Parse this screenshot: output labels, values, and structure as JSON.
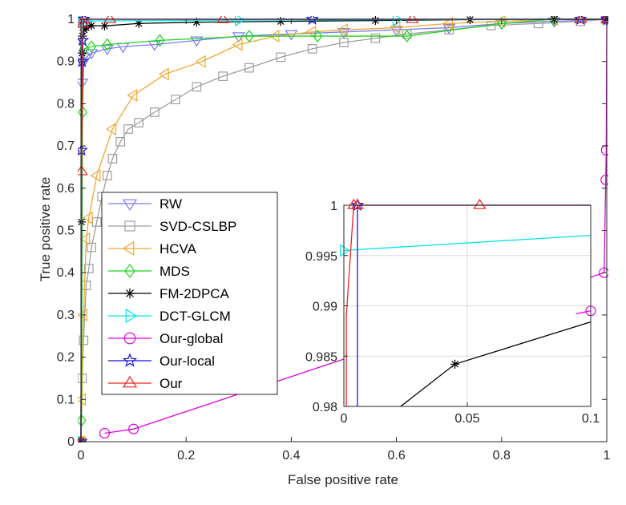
{
  "chart_data": [
    {
      "type": "line",
      "xlabel": "False positive rate",
      "ylabel": "True positive rate",
      "xlim": [
        0,
        1
      ],
      "ylim": [
        0,
        1
      ],
      "xticks": [
        0,
        0.2,
        0.4,
        0.6,
        0.8,
        1
      ],
      "xtick_labels": [
        "0",
        "0.2",
        "0.4",
        "0.6",
        "0.8",
        "1"
      ],
      "yticks": [
        0,
        0.1,
        0.2,
        0.3,
        0.4,
        0.5,
        0.6,
        0.7,
        0.8,
        0.9,
        1
      ],
      "ytick_labels": [
        "0",
        "0.1",
        "0.2",
        "0.3",
        "0.4",
        "0.5",
        "0.6",
        "0.7",
        "0.8",
        "0.9",
        "1"
      ],
      "grid": false,
      "legend_position": "left",
      "series": [
        {
          "name": "RW",
          "color": "#7b7bf5",
          "marker": "triangle-down",
          "x": [
            0,
            0.002,
            0.005,
            0.01,
            0.02,
            0.05,
            0.08,
            0.14,
            0.22,
            0.3,
            0.4,
            0.5,
            0.6,
            0.7,
            0.8,
            0.9,
            1
          ],
          "y": [
            0,
            0.85,
            0.9,
            0.91,
            0.92,
            0.93,
            0.935,
            0.94,
            0.95,
            0.96,
            0.965,
            0.97,
            0.975,
            0.98,
            0.99,
            0.995,
            1
          ]
        },
        {
          "name": "SVD-CSLBP",
          "color": "#9e9e9e",
          "marker": "square",
          "x": [
            0,
            0.002,
            0.005,
            0.01,
            0.015,
            0.02,
            0.03,
            0.04,
            0.05,
            0.06,
            0.075,
            0.09,
            0.11,
            0.14,
            0.18,
            0.22,
            0.27,
            0.32,
            0.38,
            0.44,
            0.5,
            0.56,
            0.62,
            0.7,
            0.78,
            0.87,
            0.95,
            1
          ],
          "y": [
            0,
            0.15,
            0.24,
            0.37,
            0.41,
            0.46,
            0.52,
            0.58,
            0.63,
            0.67,
            0.71,
            0.74,
            0.755,
            0.78,
            0.81,
            0.84,
            0.865,
            0.885,
            0.91,
            0.93,
            0.945,
            0.955,
            0.965,
            0.975,
            0.985,
            0.99,
            0.995,
            1
          ]
        },
        {
          "name": "HCVA",
          "color": "#f0a830",
          "marker": "triangle-left",
          "x": [
            0,
            0.002,
            0.005,
            0.01,
            0.015,
            0.03,
            0.06,
            0.1,
            0.16,
            0.23,
            0.3,
            0.37,
            0.44,
            0.5,
            0.6,
            0.7,
            0.8,
            0.9,
            1
          ],
          "y": [
            0,
            0.1,
            0.3,
            0.48,
            0.53,
            0.63,
            0.74,
            0.82,
            0.87,
            0.9,
            0.94,
            0.96,
            0.97,
            0.975,
            0.98,
            0.99,
            0.995,
            1,
            1
          ]
        },
        {
          "name": "MDS",
          "color": "#1ed31e",
          "marker": "diamond",
          "x": [
            0,
            0.001,
            0.003,
            0.006,
            0.02,
            0.05,
            0.15,
            0.32,
            0.45,
            0.62,
            0.8,
            0.9,
            1
          ],
          "y": [
            0,
            0.05,
            0.78,
            0.93,
            0.935,
            0.94,
            0.95,
            0.96,
            0.96,
            0.96,
            0.99,
            1,
            1
          ]
        },
        {
          "name": "FM-2DPCA",
          "color": "#000000",
          "marker": "asterisk",
          "x": [
            0,
            0.001,
            0.002,
            0.003,
            0.006,
            0.01,
            0.02,
            0.045,
            0.11,
            0.22,
            0.38,
            0.56,
            0.74,
            0.9,
            1
          ],
          "y": [
            0,
            0.52,
            0.92,
            0.96,
            0.975,
            0.98,
            0.985,
            0.9842,
            0.99,
            0.993,
            0.995,
            0.997,
            0.999,
            1,
            1
          ]
        },
        {
          "name": "DCT-GLCM",
          "color": "#00e5e5",
          "marker": "triangle-right",
          "x": [
            0,
            0.002,
            0.01,
            0.3,
            0.6,
            1
          ],
          "y": [
            0,
            0.9955,
            0.996,
            0.998,
            0.999,
            1
          ]
        },
        {
          "name": "Our-global",
          "color": "#e000e0",
          "marker": "circle",
          "x": [
            0.045,
            0.1,
            0.995,
            0.998,
            0.999,
            1
          ],
          "y": [
            0.02,
            0.03,
            0.4,
            0.62,
            0.69,
            1
          ]
        },
        {
          "name": "Our-local",
          "color": "#1515dd",
          "marker": "pentagram",
          "x": [
            0,
            0.001,
            0.002,
            0.003,
            0.0055,
            0.44,
            0.95,
            1
          ],
          "y": [
            0,
            0.69,
            0.9,
            0.95,
            1,
            1,
            1,
            1
          ]
        },
        {
          "name": "Our",
          "color": "#ee2020",
          "marker": "triangle-up",
          "x": [
            0,
            0.001,
            0.004,
            0.0055,
            0.055,
            0.27,
            0.63,
            0.95,
            1
          ],
          "y": [
            0,
            0.64,
            0.989,
            1,
            1,
            1,
            1,
            1,
            1
          ]
        }
      ]
    },
    {
      "type": "line",
      "inset": true,
      "xlim": [
        0,
        0.1
      ],
      "ylim": [
        0.98,
        1
      ],
      "xticks": [
        0,
        0.05,
        0.1
      ],
      "xtick_labels": [
        "0",
        "0.05",
        "0.1"
      ],
      "yticks": [
        0.98,
        0.985,
        0.99,
        0.995,
        1
      ],
      "ytick_labels": [
        "0.98",
        "0.985",
        "0.99",
        "0.995",
        "1"
      ],
      "grid": true,
      "series": [
        {
          "name": "FM-2DPCA",
          "color": "#000000",
          "marker": "asterisk",
          "x": [
            0.023,
            0.045,
            0.1
          ],
          "y": [
            0.98,
            0.9842,
            0.9884
          ],
          "marked": [
            false,
            true,
            false
          ]
        },
        {
          "name": "DCT-GLCM",
          "color": "#00e5e5",
          "marker": "triangle-right",
          "x": [
            0,
            0.1
          ],
          "y": [
            0.9955,
            0.997
          ],
          "marked": [
            true,
            false
          ]
        },
        {
          "name": "Our-local",
          "color": "#1515dd",
          "marker": "pentagram",
          "x": [
            0.0055,
            0.0055,
            0.1
          ],
          "y": [
            0.98,
            1,
            1
          ],
          "marked": [
            false,
            true,
            false
          ]
        },
        {
          "name": "Our-global",
          "color": "#e000e0",
          "marker": "circle",
          "x": [
            0.094,
            0.1
          ],
          "y": [
            0.9892,
            0.9895
          ],
          "marked": [
            false,
            true
          ]
        },
        {
          "name": "Our",
          "color": "#ee2020",
          "marker": "triangle-up",
          "x": [
            0.001,
            0.001,
            0.004,
            0.0055,
            0.055,
            0.1
          ],
          "y": [
            0.98,
            0.989,
            1,
            1,
            1,
            1
          ],
          "marked": [
            false,
            false,
            true,
            true,
            true,
            false
          ]
        }
      ]
    }
  ]
}
